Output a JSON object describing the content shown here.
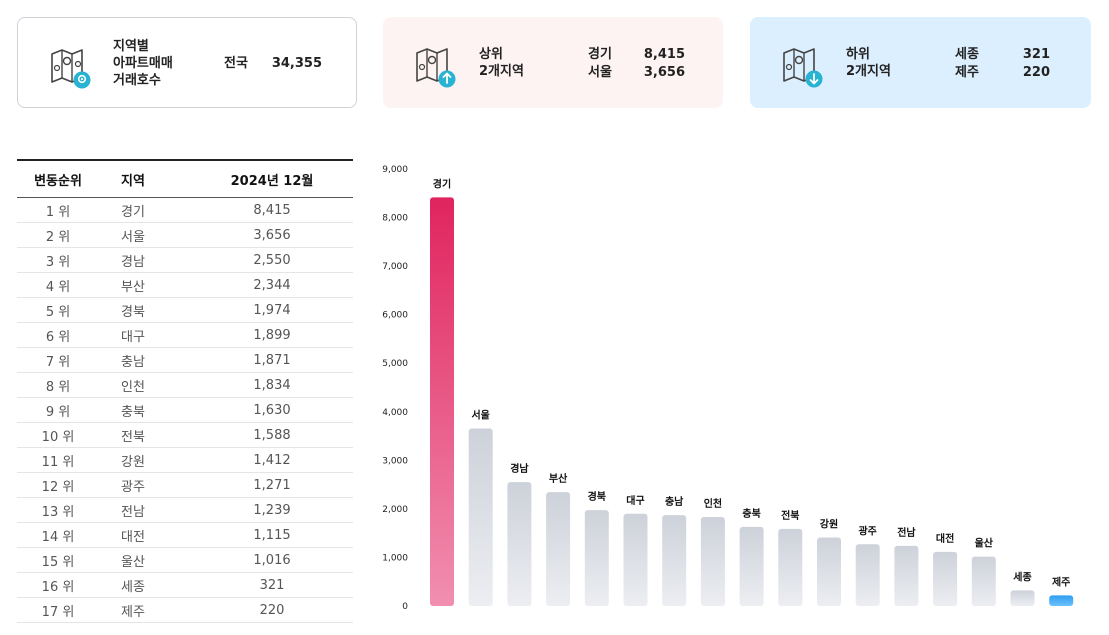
{
  "summary": {
    "national": {
      "title_lines": [
        "지역별",
        "아파트매매",
        "거래호수"
      ],
      "label": "전국",
      "value": "34,355"
    },
    "top": {
      "title_lines": [
        "상위",
        "2개지역"
      ],
      "rows": [
        {
          "region": "경기",
          "value": "8,415"
        },
        {
          "region": "서울",
          "value": "3,656"
        }
      ]
    },
    "bottom": {
      "title_lines": [
        "하위",
        "2개지역"
      ],
      "rows": [
        {
          "region": "세종",
          "value": "321"
        },
        {
          "region": "제주",
          "value": "220"
        }
      ]
    }
  },
  "table": {
    "headers": [
      "변동순위",
      "지역",
      "2024년 12월"
    ],
    "rows": [
      {
        "rank": "1 위",
        "region": "경기",
        "value": "8,415"
      },
      {
        "rank": "2 위",
        "region": "서울",
        "value": "3,656"
      },
      {
        "rank": "3 위",
        "region": "경남",
        "value": "2,550"
      },
      {
        "rank": "4 위",
        "region": "부산",
        "value": "2,344"
      },
      {
        "rank": "5 위",
        "region": "경북",
        "value": "1,974"
      },
      {
        "rank": "6 위",
        "region": "대구",
        "value": "1,899"
      },
      {
        "rank": "7 위",
        "region": "충남",
        "value": "1,871"
      },
      {
        "rank": "8 위",
        "region": "인천",
        "value": "1,834"
      },
      {
        "rank": "9 위",
        "region": "충북",
        "value": "1,630"
      },
      {
        "rank": "10 위",
        "region": "전북",
        "value": "1,588"
      },
      {
        "rank": "11 위",
        "region": "강원",
        "value": "1,412"
      },
      {
        "rank": "12 위",
        "region": "광주",
        "value": "1,271"
      },
      {
        "rank": "13 위",
        "region": "전남",
        "value": "1,239"
      },
      {
        "rank": "14 위",
        "region": "대전",
        "value": "1,115"
      },
      {
        "rank": "15 위",
        "region": "울산",
        "value": "1,016"
      },
      {
        "rank": "16 위",
        "region": "세종",
        "value": "321"
      },
      {
        "rank": "17 위",
        "region": "제주",
        "value": "220"
      }
    ]
  },
  "colors": {
    "top_bar_start": "#e0245e",
    "top_bar_end": "#f18fb0",
    "bottom_bar_start": "#2f9ff0",
    "bottom_bar_end": "#6cc1fb",
    "other_bar_start": "#cdd1d9",
    "other_bar_end": "#eceef2",
    "icon_accent": "#27b3d1"
  },
  "chart_data": {
    "type": "bar",
    "categories": [
      "경기",
      "서울",
      "경남",
      "부산",
      "경북",
      "대구",
      "충남",
      "인천",
      "충북",
      "전북",
      "강원",
      "광주",
      "전남",
      "대전",
      "울산",
      "세종",
      "제주"
    ],
    "values": [
      8415,
      3656,
      2550,
      2344,
      1974,
      1899,
      1871,
      1834,
      1630,
      1588,
      1412,
      1271,
      1239,
      1115,
      1016,
      321,
      220
    ],
    "yticks": [
      "0",
      "1,000",
      "2,000",
      "3,000",
      "4,000",
      "5,000",
      "6,000",
      "7,000",
      "8,000",
      "9,000"
    ],
    "ylim": [
      0,
      9000
    ],
    "grid": false,
    "legend": "none",
    "highlight": {
      "top": [
        "경기"
      ],
      "bottom": [
        "제주"
      ]
    }
  }
}
